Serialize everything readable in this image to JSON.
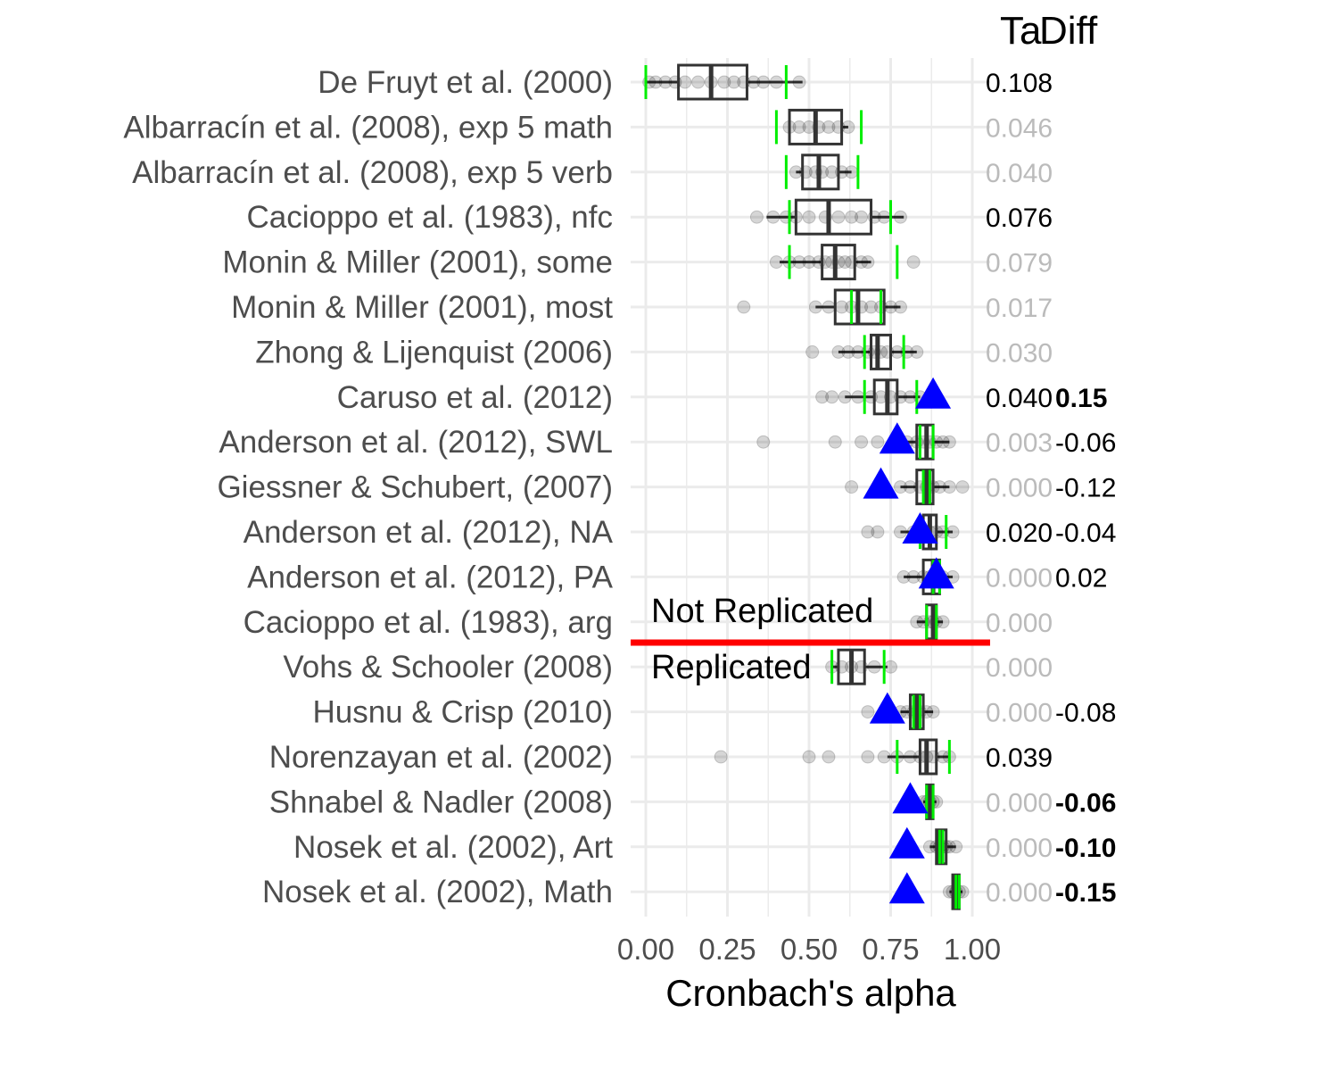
{
  "chart_data": {
    "type": "boxplot",
    "xlabel": "Cronbach's alpha",
    "xlim": [
      0,
      1
    ],
    "x_ticks": [
      "0.00",
      "0.25",
      "0.50",
      "0.75",
      "1.00"
    ],
    "column_headers": [
      "Ta",
      "Diff"
    ],
    "group_labels": [
      "Not Replicated",
      "Replicated"
    ],
    "colors": {
      "box": "#333333",
      "points": "#000000",
      "green_marks": "#00ee00",
      "triangle": "#0000ff",
      "divider": "#ff0000",
      "grid": "#ebebeb",
      "value_black": "#000000",
      "value_gray": "#bbbbbb"
    },
    "studies": [
      {
        "name": "De Fruyt et al. (2000)",
        "q1": 0.1,
        "median": 0.2,
        "q3": 0.31,
        "wlo": 0.0,
        "whi": 0.48,
        "green": [
          0.0,
          0.43
        ],
        "points": [
          0.01,
          0.03,
          0.06,
          0.09,
          0.12,
          0.16,
          0.2,
          0.24,
          0.27,
          0.3,
          0.33,
          0.36,
          0.4,
          0.47
        ],
        "triangle": null,
        "ta": "0.108",
        "ta_color": "black",
        "diff": null
      },
      {
        "name": "Albarracín et al. (2008), exp 5 math",
        "q1": 0.44,
        "median": 0.52,
        "q3": 0.6,
        "wlo": 0.44,
        "whi": 0.62,
        "green": [
          0.4,
          0.66
        ],
        "points": [
          0.44,
          0.47,
          0.5,
          0.53,
          0.56,
          0.59,
          0.62
        ],
        "triangle": null,
        "ta": "0.046",
        "ta_color": "gray",
        "diff": null
      },
      {
        "name": "Albarracín et al. (2008), exp 5 verb",
        "q1": 0.48,
        "median": 0.53,
        "q3": 0.59,
        "wlo": 0.46,
        "whi": 0.63,
        "green": [
          0.43,
          0.65
        ],
        "points": [
          0.46,
          0.49,
          0.52,
          0.54,
          0.57,
          0.6,
          0.63
        ],
        "triangle": null,
        "ta": "0.040",
        "ta_color": "gray",
        "diff": null
      },
      {
        "name": "Cacioppo et al. (1983), nfc",
        "q1": 0.46,
        "median": 0.56,
        "q3": 0.69,
        "wlo": 0.37,
        "whi": 0.79,
        "green": [
          0.44,
          0.75
        ],
        "points": [
          0.34,
          0.39,
          0.43,
          0.46,
          0.5,
          0.55,
          0.59,
          0.63,
          0.66,
          0.7,
          0.73,
          0.78
        ],
        "triangle": null,
        "ta": "0.076",
        "ta_color": "black",
        "diff": null
      },
      {
        "name": "Monin & Miller (2001), some",
        "q1": 0.54,
        "median": 0.58,
        "q3": 0.64,
        "wlo": 0.41,
        "whi": 0.69,
        "green": [
          0.44,
          0.77
        ],
        "points": [
          0.4,
          0.44,
          0.47,
          0.5,
          0.53,
          0.55,
          0.57,
          0.59,
          0.61,
          0.63,
          0.66,
          0.68,
          0.82
        ],
        "triangle": null,
        "ta": "0.079",
        "ta_color": "gray",
        "diff": null
      },
      {
        "name": "Monin & Miller (2001), most",
        "q1": 0.58,
        "median": 0.65,
        "q3": 0.73,
        "wlo": 0.52,
        "whi": 0.78,
        "green": [
          0.63,
          0.72
        ],
        "points": [
          0.3,
          0.52,
          0.56,
          0.6,
          0.63,
          0.66,
          0.69,
          0.72,
          0.75,
          0.78
        ],
        "triangle": null,
        "ta": "0.017",
        "ta_color": "gray",
        "diff": null
      },
      {
        "name": "Zhong & Lijenquist (2006)",
        "q1": 0.69,
        "median": 0.71,
        "q3": 0.75,
        "wlo": 0.59,
        "whi": 0.83,
        "green": [
          0.67,
          0.79
        ],
        "points": [
          0.51,
          0.59,
          0.62,
          0.65,
          0.68,
          0.7,
          0.72,
          0.74,
          0.77,
          0.8,
          0.83
        ],
        "triangle": null,
        "ta": "0.030",
        "ta_color": "gray",
        "diff": null
      },
      {
        "name": "Caruso et al. (2012)",
        "q1": 0.7,
        "median": 0.74,
        "q3": 0.77,
        "wlo": 0.61,
        "whi": 0.84,
        "green": [
          0.67,
          0.83
        ],
        "points": [
          0.54,
          0.57,
          0.61,
          0.65,
          0.69,
          0.72,
          0.75,
          0.78,
          0.81,
          0.84
        ],
        "triangle": 0.88,
        "ta": "0.040",
        "ta_color": "black",
        "diff": "0.15",
        "diff_bold": true
      },
      {
        "name": "Anderson et al. (2012), SWL",
        "q1": 0.83,
        "median": 0.86,
        "q3": 0.88,
        "wlo": 0.76,
        "whi": 0.93,
        "green": [
          0.84,
          0.88
        ],
        "points": [
          0.36,
          0.58,
          0.66,
          0.71,
          0.76,
          0.8,
          0.83,
          0.85,
          0.87,
          0.89,
          0.91,
          0.93
        ],
        "triangle": 0.77,
        "ta": "0.003",
        "ta_color": "gray",
        "diff": "-0.06",
        "diff_bold": false
      },
      {
        "name": "Giessner & Schubert, (2007)",
        "q1": 0.83,
        "median": 0.86,
        "q3": 0.88,
        "wlo": 0.78,
        "whi": 0.93,
        "green": [
          0.85,
          0.87
        ],
        "points": [
          0.63,
          0.72,
          0.78,
          0.81,
          0.84,
          0.86,
          0.88,
          0.9,
          0.93,
          0.97
        ],
        "triangle": 0.72,
        "ta": "0.000",
        "ta_color": "gray",
        "diff": "-0.12",
        "diff_bold": false
      },
      {
        "name": "Anderson et al. (2012), NA",
        "q1": 0.85,
        "median": 0.87,
        "q3": 0.89,
        "wlo": 0.78,
        "whi": 0.94,
        "green": [
          0.84,
          0.92
        ],
        "points": [
          0.68,
          0.71,
          0.78,
          0.82,
          0.85,
          0.87,
          0.89,
          0.91,
          0.94
        ],
        "triangle": 0.84,
        "ta": "0.020",
        "ta_color": "black",
        "diff": "-0.04",
        "diff_bold": false
      },
      {
        "name": "Anderson et al. (2012), PA",
        "q1": 0.85,
        "median": 0.88,
        "q3": 0.9,
        "wlo": 0.79,
        "whi": 0.94,
        "green": [
          0.88,
          0.9
        ],
        "points": [
          0.79,
          0.82,
          0.85,
          0.87,
          0.89,
          0.91,
          0.94
        ],
        "triangle": 0.89,
        "ta": "0.000",
        "ta_color": "gray",
        "diff": "0.02",
        "diff_bold": false
      },
      {
        "name": "Cacioppo et al. (1983), arg",
        "q1": 0.86,
        "median": 0.88,
        "q3": 0.89,
        "wlo": 0.83,
        "whi": 0.91,
        "green": [
          0.86,
          0.89
        ],
        "points": [
          0.83,
          0.85,
          0.87,
          0.88,
          0.89,
          0.91
        ],
        "triangle": null,
        "ta": "0.000",
        "ta_color": "gray",
        "diff": null
      },
      {
        "name": "Vohs & Schooler (2008)",
        "q1": 0.59,
        "median": 0.63,
        "q3": 0.67,
        "wlo": 0.57,
        "whi": 0.74,
        "green": [
          0.57,
          0.73
        ],
        "points": [
          0.57,
          0.6,
          0.63,
          0.66,
          0.7,
          0.75
        ],
        "triangle": null,
        "ta": "0.000",
        "ta_color": "gray",
        "diff": null
      },
      {
        "name": "Husnu & Crisp (2010)",
        "q1": 0.81,
        "median": 0.83,
        "q3": 0.85,
        "wlo": 0.78,
        "whi": 0.88,
        "green": [
          0.82,
          0.84
        ],
        "points": [
          0.68,
          0.78,
          0.8,
          0.82,
          0.84,
          0.86,
          0.88
        ],
        "triangle": 0.74,
        "ta": "0.000",
        "ta_color": "gray",
        "diff": "-0.08",
        "diff_bold": false
      },
      {
        "name": "Norenzayan et al. (2002)",
        "q1": 0.84,
        "median": 0.86,
        "q3": 0.89,
        "wlo": 0.74,
        "whi": 0.93,
        "green": [
          0.77,
          0.93
        ],
        "points": [
          0.23,
          0.5,
          0.56,
          0.68,
          0.73,
          0.77,
          0.81,
          0.84,
          0.86,
          0.88,
          0.91,
          0.93
        ],
        "triangle": null,
        "ta": "0.039",
        "ta_color": "black",
        "diff": null
      },
      {
        "name": "Shnabel & Nadler (2008)",
        "q1": 0.86,
        "median": 0.87,
        "q3": 0.88,
        "wlo": 0.85,
        "whi": 0.89,
        "green": [
          0.86,
          0.88
        ],
        "points": [
          0.85,
          0.86,
          0.87,
          0.88,
          0.89
        ],
        "triangle": 0.81,
        "ta": "0.000",
        "ta_color": "gray",
        "diff": "-0.06",
        "diff_bold": true
      },
      {
        "name": "Nosek et al. (2002), Art",
        "q1": 0.89,
        "median": 0.9,
        "q3": 0.92,
        "wlo": 0.87,
        "whi": 0.95,
        "green": [
          0.9,
          0.91
        ],
        "points": [
          0.87,
          0.89,
          0.9,
          0.91,
          0.92,
          0.93,
          0.95
        ],
        "triangle": 0.8,
        "ta": "0.000",
        "ta_color": "gray",
        "diff": "-0.10",
        "diff_bold": true
      },
      {
        "name": "Nosek et al. (2002), Math",
        "q1": 0.94,
        "median": 0.95,
        "q3": 0.96,
        "wlo": 0.93,
        "whi": 0.97,
        "green": [
          0.95,
          0.96
        ],
        "points": [
          0.93,
          0.94,
          0.95,
          0.96,
          0.97
        ],
        "triangle": 0.8,
        "ta": "0.000",
        "ta_color": "gray",
        "diff": "-0.15",
        "diff_bold": true
      }
    ]
  }
}
